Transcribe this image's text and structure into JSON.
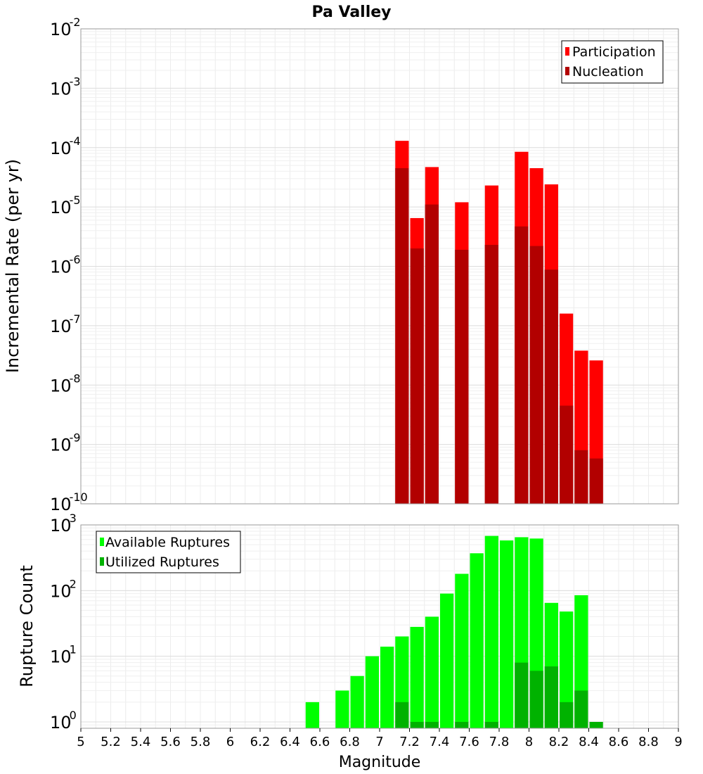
{
  "title": "Pa Valley",
  "chart_data": [
    {
      "type": "bar",
      "id": "rate",
      "ylabel": "Incremental Rate (per yr)",
      "xlim": [
        5,
        9
      ],
      "ylim": [
        1e-10,
        0.01
      ],
      "yscale": "log",
      "grid": true,
      "legend_position": "top-right",
      "series": [
        {
          "name": "Participation",
          "color": "#ff0000",
          "x": [
            7.15,
            7.25,
            7.35,
            7.55,
            7.75,
            7.95,
            8.05,
            8.15,
            8.25,
            8.35,
            8.45
          ],
          "values": [
            0.00013,
            6.5e-06,
            4.7e-05,
            1.2e-05,
            2.3e-05,
            8.5e-05,
            4.5e-05,
            2.4e-05,
            1.6e-07,
            3.8e-08,
            2.6e-08
          ]
        },
        {
          "name": "Nucleation",
          "color": "#b20000",
          "x": [
            7.15,
            7.25,
            7.35,
            7.55,
            7.75,
            7.95,
            8.05,
            8.15,
            8.25,
            8.35,
            8.45
          ],
          "values": [
            4.5e-05,
            2e-06,
            1.1e-05,
            1.9e-06,
            2.3e-06,
            4.7e-06,
            2.2e-06,
            8.8e-07,
            4.5e-09,
            8e-10,
            5.8e-10
          ]
        }
      ],
      "y_tick_exponents": [
        "-10",
        "-9",
        "-8",
        "-7",
        "-6",
        "-5",
        "-4",
        "-3",
        "-2"
      ]
    },
    {
      "type": "bar",
      "id": "count",
      "xlabel": "Magnitude",
      "ylabel": "Rupture Count",
      "xlim": [
        5,
        9
      ],
      "ylim": [
        0.8,
        1000
      ],
      "yscale": "log",
      "grid": true,
      "legend_position": "top-left",
      "series": [
        {
          "name": "Available Ruptures",
          "color": "#00ff00",
          "x": [
            6.55,
            6.75,
            6.85,
            6.95,
            7.05,
            7.15,
            7.25,
            7.35,
            7.45,
            7.55,
            7.65,
            7.75,
            7.85,
            7.95,
            8.05,
            8.15,
            8.25,
            8.35
          ],
          "values": [
            2,
            3,
            5,
            10,
            14,
            20,
            28,
            40,
            90,
            180,
            370,
            680,
            580,
            650,
            620,
            65,
            48,
            85
          ]
        },
        {
          "name": "Utilized Ruptures",
          "color": "#00b200",
          "x": [
            7.15,
            7.25,
            7.35,
            7.55,
            7.75,
            7.95,
            8.05,
            8.15,
            8.25,
            8.35,
            8.45
          ],
          "values": [
            2,
            1,
            1,
            1,
            1,
            8,
            6,
            7,
            2,
            3,
            1
          ]
        }
      ],
      "y_tick_exponents": [
        "0",
        "1",
        "2",
        "3"
      ]
    }
  ],
  "x_tick_labels": [
    "5",
    "5.2",
    "5.4",
    "5.6",
    "5.8",
    "6",
    "6.2",
    "6.4",
    "6.6",
    "6.8",
    "7",
    "7.2",
    "7.4",
    "7.6",
    "7.8",
    "8",
    "8.2",
    "8.4",
    "8.6",
    "8.8",
    "9"
  ]
}
